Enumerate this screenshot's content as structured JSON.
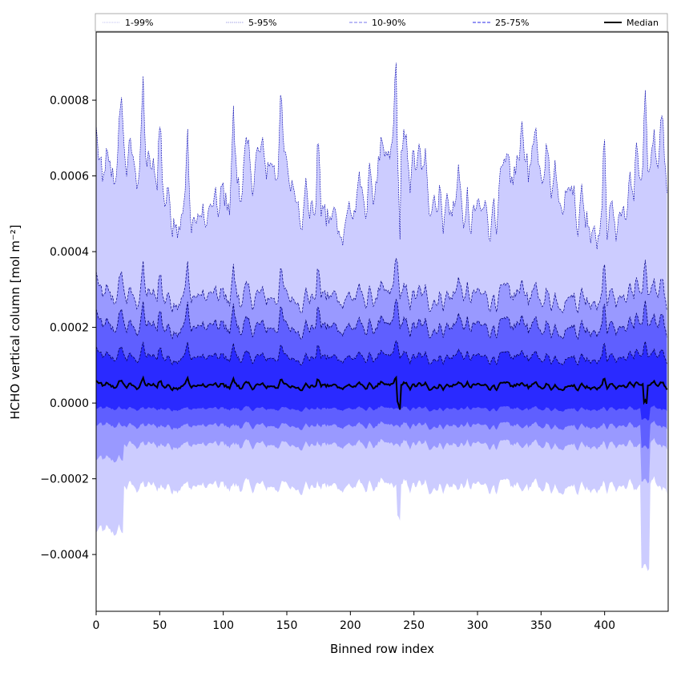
{
  "chart_data": {
    "type": "area",
    "xlabel": "Binned row index",
    "ylabel": "HCHO vertical column [mol m⁻²]",
    "xlim": [
      0,
      450
    ],
    "ylim": [
      -0.00055,
      0.00098
    ],
    "x_ticks": [
      0,
      50,
      100,
      150,
      200,
      250,
      300,
      350,
      400
    ],
    "x_tick_labels": [
      "0",
      "50",
      "100",
      "150",
      "200",
      "250",
      "300",
      "350",
      "400"
    ],
    "y_ticks": [
      -0.0004,
      -0.0002,
      0.0,
      0.0002,
      0.0004,
      0.0006,
      0.0008
    ],
    "y_tick_labels": [
      "−0.0004",
      "−0.0002",
      "0.0000",
      "0.0002",
      "0.0004",
      "0.0006",
      "0.0008"
    ],
    "grid": false,
    "legend_position": "top (above plot, single row)",
    "legend": [
      "1-99%",
      "5-95%",
      "10-90%",
      "25-75%",
      "Median"
    ],
    "n_points": 450,
    "series": [
      {
        "name": "1-99%",
        "upper_mean": 0.00056,
        "lower_mean": -0.00022,
        "color": "#ccccff"
      },
      {
        "name": "5-95%",
        "upper_mean": 0.00028,
        "lower_mean": -0.00011,
        "color": "#9999ff"
      },
      {
        "name": "10-90%",
        "upper_mean": 0.0002,
        "lower_mean": -6e-05,
        "color": "#5f5fff"
      },
      {
        "name": "25-75%",
        "upper_mean": 0.00012,
        "lower_mean": -1.5e-05,
        "color": "#2a2aff"
      },
      {
        "name": "Median",
        "mean": 4.5e-05,
        "color": "#000000"
      }
    ],
    "annotated_features": [
      {
        "x": 20,
        "note": "peak 1-99% upper ~0.00091"
      },
      {
        "x": 237,
        "note": "dip in all bands"
      },
      {
        "x": 432,
        "note": "lower bound minimum ~-0.00045"
      }
    ]
  }
}
